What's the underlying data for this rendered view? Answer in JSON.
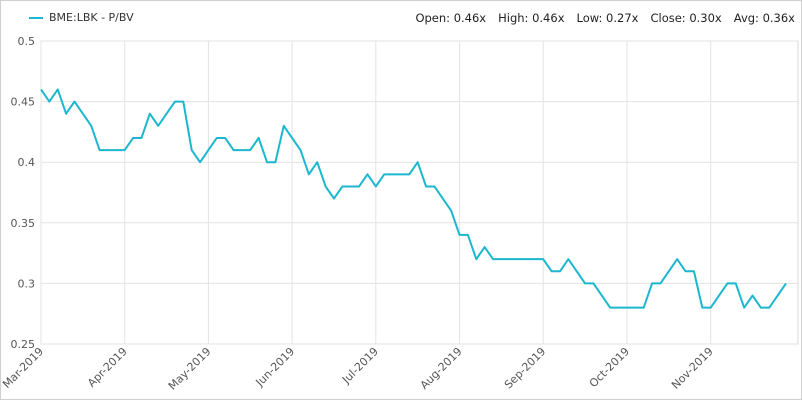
{
  "chart_data": {
    "type": "line",
    "legend_label": "BME:LBK - P/BV",
    "stats": [
      "Open: 0.46x",
      "High: 0.46x",
      "Low: 0.27x",
      "Close: 0.30x",
      "Avg: 0.36x"
    ],
    "categories": [
      "Mar-2019",
      null,
      null,
      null,
      null,
      null,
      null,
      null,
      null,
      null,
      "Apr-2019",
      null,
      null,
      null,
      null,
      null,
      null,
      null,
      null,
      null,
      "May-2019",
      null,
      null,
      null,
      null,
      null,
      null,
      null,
      null,
      null,
      "Jun-2019",
      null,
      null,
      null,
      null,
      null,
      null,
      null,
      null,
      null,
      "Jul-2019",
      null,
      null,
      null,
      null,
      null,
      null,
      null,
      null,
      null,
      "Aug-2019",
      null,
      null,
      null,
      null,
      null,
      null,
      null,
      null,
      null,
      "Sep-2019",
      null,
      null,
      null,
      null,
      null,
      null,
      null,
      null,
      null,
      "Oct-2019",
      null,
      null,
      null,
      null,
      null,
      null,
      null,
      null,
      null,
      "Nov-2019",
      null,
      null,
      null,
      null,
      null,
      null,
      null,
      null,
      null
    ],
    "series": [
      {
        "name": "BME:LBK - P/BV",
        "color": "#1bb7cf",
        "values": [
          0.46,
          0.45,
          0.46,
          0.44,
          0.45,
          0.44,
          0.43,
          0.41,
          0.41,
          0.41,
          0.41,
          0.42,
          0.42,
          0.44,
          0.43,
          0.44,
          0.45,
          0.45,
          0.41,
          0.4,
          0.41,
          0.42,
          0.42,
          0.41,
          0.41,
          0.41,
          0.42,
          0.4,
          0.4,
          0.43,
          0.42,
          0.41,
          0.39,
          0.4,
          0.38,
          0.37,
          0.38,
          0.38,
          0.38,
          0.39,
          0.38,
          0.39,
          0.39,
          0.39,
          0.39,
          0.4,
          0.38,
          0.38,
          0.37,
          0.36,
          0.34,
          0.34,
          0.32,
          0.33,
          0.32,
          0.32,
          0.32,
          0.32,
          0.32,
          0.32,
          0.32,
          0.31,
          0.31,
          0.32,
          0.31,
          0.3,
          0.3,
          0.29,
          0.28,
          0.28,
          0.28,
          0.28,
          0.28,
          0.3,
          0.3,
          0.31,
          0.32,
          0.31,
          0.31,
          0.28,
          0.28,
          0.29,
          0.3,
          0.3,
          0.28,
          0.29,
          0.28,
          0.28,
          0.29,
          0.3
        ]
      }
    ],
    "ylim": [
      0.25,
      0.5
    ],
    "yticks": [
      0.25,
      0.3,
      0.35,
      0.4,
      0.45,
      0.5
    ],
    "grid": true
  }
}
